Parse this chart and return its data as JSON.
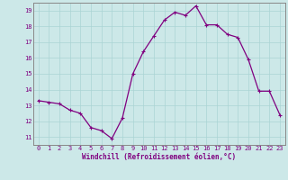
{
  "x": [
    0,
    1,
    2,
    3,
    4,
    5,
    6,
    7,
    8,
    9,
    10,
    11,
    12,
    13,
    14,
    15,
    16,
    17,
    18,
    19,
    20,
    21,
    22,
    23
  ],
  "y": [
    13.3,
    13.2,
    13.1,
    12.7,
    12.5,
    11.6,
    11.4,
    10.9,
    12.2,
    15.0,
    16.4,
    17.4,
    18.4,
    18.9,
    18.7,
    19.3,
    18.1,
    18.1,
    17.5,
    17.3,
    15.9,
    13.9,
    13.9,
    12.4
  ],
  "xlim": [
    -0.5,
    23.5
  ],
  "ylim": [
    10.5,
    19.5
  ],
  "yticks": [
    11,
    12,
    13,
    14,
    15,
    16,
    17,
    18,
    19
  ],
  "xticks": [
    0,
    1,
    2,
    3,
    4,
    5,
    6,
    7,
    8,
    9,
    10,
    11,
    12,
    13,
    14,
    15,
    16,
    17,
    18,
    19,
    20,
    21,
    22,
    23
  ],
  "xlabel": "Windchill (Refroidissement éolien,°C)",
  "line_color": "#800080",
  "marker": "+",
  "bg_color": "#cce8e8",
  "grid_color": "#aad4d4",
  "axis_label_color": "#800080",
  "tick_label_color": "#800080",
  "border_color": "#888888",
  "tick_fontsize": 5.0,
  "label_fontsize": 5.5,
  "linewidth": 0.9,
  "markersize": 3.5,
  "markeredgewidth": 0.8
}
